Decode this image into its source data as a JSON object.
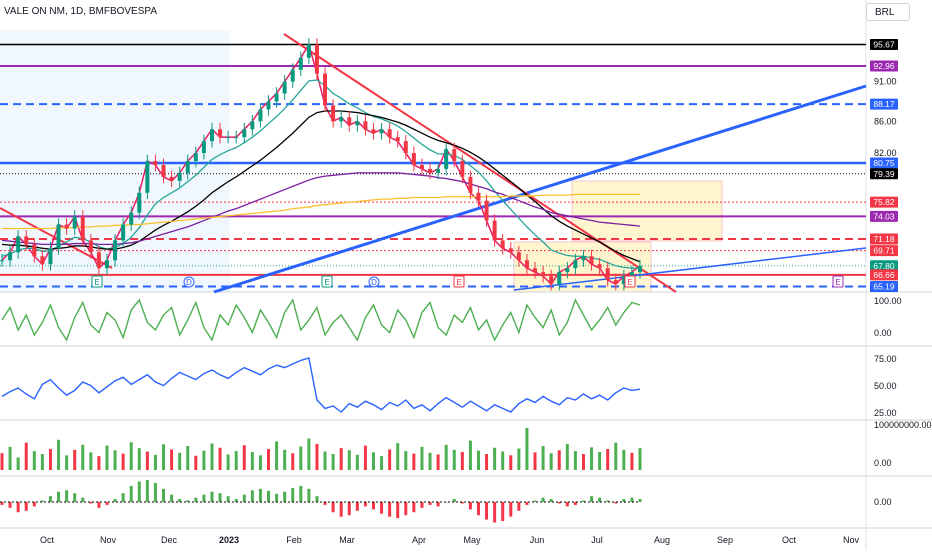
{
  "header": {
    "symbol_title": "VALE ON NM, 1D, BMFBOVESPA",
    "currency": "BRL"
  },
  "price_axis": {
    "ticks": [
      "91.00",
      "86.00",
      "82.00"
    ],
    "tags": [
      {
        "label": "95.67",
        "bg": "#000000",
        "fg": "#ffffff"
      },
      {
        "label": "92.96",
        "bg": "#9c27b0",
        "fg": "#ffffff"
      },
      {
        "label": "88.17",
        "bg": "#2962ff",
        "fg": "#ffffff"
      },
      {
        "label": "80.75",
        "bg": "#2962ff",
        "fg": "#ffffff"
      },
      {
        "label": "79.39",
        "bg": "#000000",
        "fg": "#ffffff"
      },
      {
        "label": "75.82",
        "bg": "#f23645",
        "fg": "#ffffff"
      },
      {
        "label": "74.03",
        "bg": "#9c27b0",
        "fg": "#ffffff"
      },
      {
        "label": "71.18",
        "bg": "#f23645",
        "fg": "#ffffff"
      },
      {
        "label": "69.71",
        "bg": "#f23645",
        "fg": "#ffffff"
      },
      {
        "label": "67.80",
        "bg": "#089981",
        "fg": "#ffffff"
      },
      {
        "label": "66.66",
        "bg": "#f23645",
        "fg": "#ffffff"
      },
      {
        "label": "65.19",
        "bg": "#2962ff",
        "fg": "#ffffff"
      }
    ]
  },
  "chart_data": [
    {
      "type": "line",
      "pane": "price",
      "x_labels": [
        "Oct",
        "Nov",
        "Dec",
        "2023",
        "Feb",
        "Mar",
        "Apr",
        "May",
        "Jun",
        "Jul",
        "Aug",
        "Sep",
        "Oct",
        "Nov"
      ],
      "y_ticks": [
        91,
        86,
        82
      ],
      "ylim": [
        64.5,
        97.5
      ],
      "series": [
        {
          "values": [
            68.5,
            69.5,
            71.5,
            70.5,
            69,
            68,
            70,
            73,
            72.5,
            74,
            71,
            69.5,
            67.5,
            68.5,
            71,
            73,
            74.5,
            77,
            81,
            80.5,
            79,
            78.5,
            79.5,
            81,
            82,
            83.5,
            85,
            84,
            84,
            84,
            85,
            86,
            87.5,
            88.5,
            89.5,
            91,
            92.5,
            94,
            95.67,
            92,
            88,
            86,
            86.5,
            85.5,
            86,
            85,
            84.5,
            85,
            84,
            83.5,
            82,
            80.5,
            80,
            79.5,
            80,
            82.5,
            81,
            79,
            77,
            76,
            73.5,
            71,
            70,
            69.5,
            68.5,
            67.5,
            67,
            66.5,
            65.5,
            67,
            67.5,
            68.5,
            69,
            68,
            67.5,
            66,
            65.5,
            66.5,
            67,
            67.8
          ]
        },
        {
          "values": [
            69,
            69.3,
            69.8,
            70,
            70,
            69.6,
            69.7,
            70.3,
            70.8,
            71.4,
            71.2,
            70.8,
            70.2,
            69.9,
            70.1,
            70.6,
            71.4,
            72.6,
            74.2,
            75.6,
            76.4,
            77,
            77.6,
            78.4,
            79.2,
            80.2,
            81.2,
            81.8,
            82.3,
            82.7,
            83.3,
            84,
            84.8,
            85.7,
            86.6,
            87.6,
            88.7,
            89.9,
            91.1,
            91.2,
            90.5,
            89.5,
            88.9,
            88.2,
            87.7,
            87.1,
            86.6,
            86.3,
            85.9,
            85.4,
            84.7,
            83.9,
            83.1,
            82.4,
            81.9,
            81.9,
            81.7,
            81.2,
            80.4,
            79.6,
            78.5,
            77.2,
            76,
            74.9,
            73.8,
            72.7,
            71.7,
            70.8,
            69.8,
            69.4,
            69.1,
            69,
            69,
            68.8,
            68.6,
            68.2,
            67.8,
            67.6,
            67.5,
            67.5
          ]
        },
        {
          "values": [
            70.5,
            70.4,
            70.4,
            70.3,
            70.2,
            70,
            69.9,
            70,
            70.1,
            70.3,
            70.3,
            70.2,
            70,
            69.9,
            69.9,
            70.1,
            70.4,
            70.9,
            71.6,
            72.3,
            72.9,
            73.4,
            74,
            74.6,
            75.3,
            76.1,
            77,
            77.7,
            78.4,
            79,
            79.7,
            80.4,
            81.1,
            81.9,
            82.7,
            83.6,
            84.5,
            85.5,
            86.5,
            87.1,
            87.3,
            87.3,
            87.3,
            87.2,
            87.1,
            86.9,
            86.7,
            86.5,
            86.2,
            85.9,
            85.5,
            85,
            84.5,
            84,
            83.6,
            83.3,
            83,
            82.6,
            82.1,
            81.5,
            80.8,
            80,
            79.2,
            78.4,
            77.6,
            76.7,
            75.9,
            75,
            74.1,
            73.4,
            72.8,
            72.3,
            71.8,
            71.3,
            70.8,
            70.2,
            69.6,
            69.1,
            68.7,
            68.3
          ]
        },
        {
          "values": [
            71,
            70.9,
            70.8,
            70.7,
            70.6,
            70.5,
            70.5,
            70.5,
            70.5,
            70.6,
            70.6,
            70.6,
            70.5,
            70.5,
            70.5,
            70.6,
            70.7,
            70.9,
            71.2,
            71.5,
            71.8,
            72.1,
            72.4,
            72.7,
            73.1,
            73.5,
            73.9,
            74.3,
            74.7,
            75,
            75.4,
            75.8,
            76.2,
            76.6,
            77,
            77.4,
            77.8,
            78.2,
            78.6,
            78.9,
            79.1,
            79.2,
            79.3,
            79.4,
            79.5,
            79.5,
            79.5,
            79.5,
            79.5,
            79.5,
            79.4,
            79.3,
            79.2,
            79.1,
            78.9,
            78.8,
            78.6,
            78.4,
            78.1,
            77.8,
            77.5,
            77.1,
            76.8,
            76.4,
            76,
            75.6,
            75.2,
            74.9,
            74.5,
            74.3,
            74.1,
            73.9,
            73.7,
            73.5,
            73.3,
            73.2,
            73.1,
            73,
            72.9,
            72.8
          ]
        },
        {
          "values": [
            72.5,
            72.5,
            72.5,
            72.5,
            72.5,
            72.5,
            72.5,
            72.6,
            72.6,
            72.6,
            72.7,
            72.7,
            72.8,
            72.8,
            72.9,
            72.9,
            73,
            73,
            73.1,
            73.2,
            73.3,
            73.4,
            73.5,
            73.6,
            73.7,
            73.8,
            73.9,
            74,
            74.1,
            74.2,
            74.3,
            74.4,
            74.5,
            74.6,
            74.7,
            74.8,
            75,
            75.1,
            75.2,
            75.4,
            75.5,
            75.6,
            75.7,
            75.8,
            75.9,
            76,
            76.1,
            76.2,
            76.2,
            76.3,
            76.3,
            76.4,
            76.4,
            76.4,
            76.4,
            76.5,
            76.5,
            76.5,
            76.5,
            76.5,
            76.5,
            76.5,
            76.5,
            76.6,
            76.6,
            76.6,
            76.6,
            76.7,
            76.7,
            76.7,
            76.7,
            76.8,
            76.8,
            76.8,
            76.8,
            76.8,
            76.8,
            76.8,
            76.8,
            76.8
          ]
        }
      ]
    },
    {
      "type": "line",
      "pane": "oscillator-1",
      "y_ticks": [
        "100.00",
        "0.00"
      ],
      "series": [
        {
          "values": [
            60,
            85,
            40,
            70,
            30,
            55,
            90,
            45,
            20,
            65,
            95,
            50,
            35,
            75,
            60,
            25,
            80,
            100,
            55,
            40,
            70,
            85,
            30,
            60,
            95,
            45,
            20,
            70,
            50,
            90,
            65,
            35,
            80,
            55,
            25,
            75,
            100,
            40,
            60,
            85,
            30,
            55,
            70,
            45,
            20,
            65,
            90,
            50,
            35,
            80,
            60,
            25,
            75,
            95,
            45,
            30,
            70,
            55,
            85,
            40,
            60,
            20,
            50,
            75,
            35,
            90,
            65,
            45,
            80,
            30,
            55,
            100,
            70,
            40,
            60,
            85,
            50,
            75,
            95,
            90
          ]
        }
      ]
    },
    {
      "type": "line",
      "pane": "oscillator-2",
      "y_ticks": [
        "75.00",
        "50.00",
        "25.00"
      ],
      "series": [
        {
          "values": [
            48,
            52,
            55,
            50,
            46,
            58,
            62,
            55,
            49,
            53,
            60,
            57,
            51,
            56,
            61,
            64,
            58,
            62,
            66,
            60,
            57,
            63,
            68,
            65,
            62,
            67,
            70,
            66,
            63,
            68,
            72,
            69,
            66,
            71,
            74,
            72,
            75,
            78,
            80,
            45,
            38,
            40,
            35,
            42,
            39,
            44,
            41,
            37,
            43,
            40,
            45,
            38,
            41,
            36,
            42,
            47,
            43,
            39,
            44,
            40,
            36,
            41,
            38,
            35,
            42,
            46,
            43,
            48,
            44,
            41,
            47,
            45,
            50,
            46,
            49,
            45,
            51,
            55,
            53,
            54
          ]
        }
      ]
    },
    {
      "type": "bar",
      "pane": "volume",
      "y_ticks": [
        "100000000.00",
        "0.00"
      ],
      "values": [
        40,
        55,
        30,
        65,
        45,
        38,
        50,
        72,
        35,
        48,
        60,
        42,
        33,
        58,
        47,
        39,
        66,
        52,
        44,
        36,
        61,
        49,
        41,
        57,
        34,
        46,
        63,
        53,
        37,
        45,
        59,
        43,
        35,
        50,
        68,
        48,
        40,
        56,
        75,
        62,
        44,
        38,
        52,
        47,
        36,
        58,
        42,
        33,
        49,
        64,
        45,
        39,
        55,
        41,
        37,
        60,
        48,
        43,
        70,
        46,
        38,
        53,
        44,
        35,
        51,
        100,
        42,
        57,
        40,
        47,
        62,
        45,
        38,
        54,
        43,
        50,
        65,
        48,
        41,
        52
      ]
    },
    {
      "type": "bar",
      "pane": "momentum",
      "y_ticks": [
        "0.00"
      ],
      "values": [
        -10,
        -20,
        -35,
        -30,
        -15,
        5,
        20,
        35,
        40,
        30,
        15,
        -5,
        -20,
        -10,
        10,
        30,
        55,
        70,
        75,
        65,
        45,
        25,
        10,
        5,
        15,
        25,
        35,
        30,
        20,
        10,
        25,
        40,
        45,
        38,
        28,
        35,
        48,
        55,
        45,
        20,
        -10,
        -35,
        -50,
        -45,
        -30,
        -15,
        -25,
        -40,
        -50,
        -55,
        -45,
        -35,
        -20,
        -10,
        -15,
        0,
        10,
        -5,
        -25,
        -45,
        -60,
        -70,
        -65,
        -50,
        -30,
        -10,
        5,
        15,
        10,
        -5,
        -15,
        -10,
        5,
        20,
        15,
        5,
        -5,
        10,
        15,
        10
      ]
    }
  ]
}
